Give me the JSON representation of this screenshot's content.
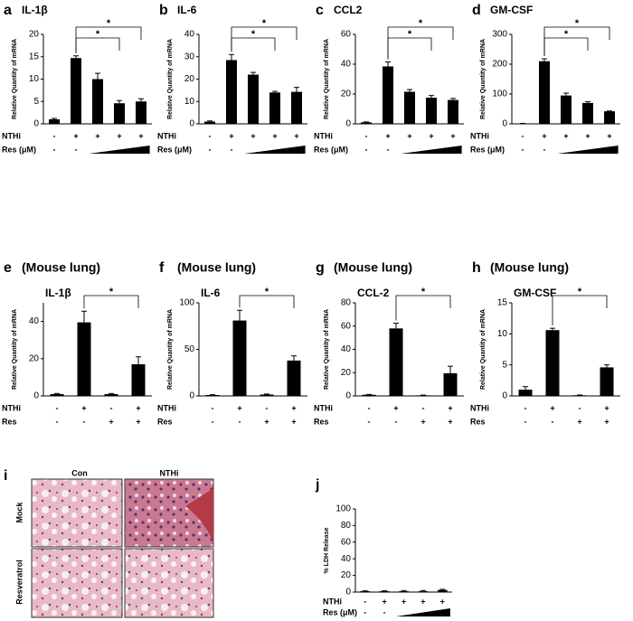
{
  "chart_data": [
    {
      "type": "bar",
      "panel": "a",
      "title": "IL-1β",
      "ylabel": "Relative Quantity of mRNA",
      "color": "#000000",
      "values": [
        1,
        14.7,
        10,
        4.6,
        5
      ],
      "errors": [
        0.2,
        0.5,
        1.3,
        0.6,
        0.6
      ],
      "ylim": [
        0,
        20
      ],
      "yticks": [
        0,
        5,
        10,
        15,
        20
      ],
      "conditions": [
        {
          "name": "NTHi",
          "signs": [
            "-",
            "+",
            "+",
            "+",
            "+"
          ]
        },
        {
          "name": "Res (μM)",
          "signs": [
            "-",
            "-",
            null,
            null,
            null
          ]
        }
      ],
      "significance": [
        {
          "label": "*",
          "between": [
            1,
            4
          ]
        },
        {
          "label": "*",
          "between": [
            1,
            3
          ]
        }
      ]
    },
    {
      "type": "bar",
      "panel": "b",
      "title": "IL-6",
      "ylabel": "Relative Quantity of mRNA",
      "color": "#000000",
      "values": [
        1,
        28.5,
        22,
        14,
        14.3
      ],
      "errors": [
        0.3,
        2.5,
        1,
        0.5,
        2
      ],
      "ylim": [
        0,
        40
      ],
      "yticks": [
        0,
        10,
        20,
        30,
        40
      ],
      "conditions": [
        {
          "name": "NTHi",
          "signs": [
            "-",
            "+",
            "+",
            "+",
            "+"
          ]
        },
        {
          "name": "Res (μM)",
          "signs": [
            "-",
            "-",
            null,
            null,
            null
          ]
        }
      ],
      "significance": [
        {
          "label": "*",
          "between": [
            1,
            4
          ]
        },
        {
          "label": "*",
          "between": [
            1,
            3
          ]
        }
      ]
    },
    {
      "type": "bar",
      "panel": "c",
      "title": "CCL2",
      "ylabel": "Relative Quantity of mRNA",
      "color": "#000000",
      "values": [
        1,
        38.5,
        21.5,
        17.5,
        16
      ],
      "errors": [
        0.3,
        3,
        1.5,
        1.5,
        1
      ],
      "ylim": [
        0,
        60
      ],
      "yticks": [
        0,
        20,
        40,
        60
      ],
      "conditions": [
        {
          "name": "NTHi",
          "signs": [
            "-",
            "+",
            "+",
            "+",
            "+"
          ]
        },
        {
          "name": "Res (μM)",
          "signs": [
            "-",
            "-",
            null,
            null,
            null
          ]
        }
      ],
      "significance": [
        {
          "label": "*",
          "between": [
            1,
            4
          ]
        },
        {
          "label": "*",
          "between": [
            1,
            3
          ]
        }
      ]
    },
    {
      "type": "bar",
      "panel": "d",
      "title": "GM-CSF",
      "ylabel": "Relative Quantity of mRNA",
      "color": "#000000",
      "values": [
        1,
        210,
        95,
        70,
        42
      ],
      "errors": [
        0.5,
        8,
        8,
        4,
        1
      ],
      "ylim": [
        0,
        300
      ],
      "yticks": [
        0,
        100,
        200,
        300
      ],
      "conditions": [
        {
          "name": "NTHi",
          "signs": [
            "-",
            "+",
            "+",
            "+",
            "+"
          ]
        },
        {
          "name": "Res (μM)",
          "signs": [
            "-",
            "-",
            null,
            null,
            null
          ]
        }
      ],
      "significance": [
        {
          "label": "*",
          "between": [
            1,
            4
          ]
        },
        {
          "label": "*",
          "between": [
            1,
            3
          ]
        }
      ]
    },
    {
      "type": "bar",
      "panel": "e",
      "subtitle": "(Mouse lung)",
      "title": "IL-1β",
      "ylabel": "Relative Quantity of mRNA",
      "color": "#000000",
      "values": [
        1,
        39.5,
        1,
        17
      ],
      "errors": [
        0.3,
        6,
        0.3,
        4
      ],
      "ylim": [
        0,
        50
      ],
      "yticks": [
        0,
        20,
        40
      ],
      "conditions": [
        {
          "name": "NTHi",
          "signs": [
            "-",
            "+",
            "-",
            "+"
          ]
        },
        {
          "name": "Res",
          "signs": [
            "-",
            "-",
            "+",
            "+"
          ]
        }
      ],
      "significance": [
        {
          "label": "*",
          "between": [
            1,
            3
          ]
        }
      ]
    },
    {
      "type": "bar",
      "panel": "f",
      "subtitle": "(Mouse lung)",
      "title": "IL-6",
      "ylabel": "Relative Quantity of mRNA",
      "color": "#000000",
      "values": [
        1,
        81,
        1.5,
        38
      ],
      "errors": [
        0.3,
        11,
        0.5,
        5
      ],
      "ylim": [
        0,
        100
      ],
      "yticks": [
        0,
        50,
        100
      ],
      "conditions": [
        {
          "name": "NTHi",
          "signs": [
            "-",
            "+",
            "-",
            "+"
          ]
        },
        {
          "name": "Res",
          "signs": [
            "-",
            "-",
            "+",
            "+"
          ]
        }
      ],
      "significance": [
        {
          "label": "*",
          "between": [
            1,
            3
          ]
        }
      ]
    },
    {
      "type": "bar",
      "panel": "g",
      "subtitle": "(Mouse lung)",
      "title": "CCL-2",
      "ylabel": "Relative Quantity of mRNA",
      "color": "#000000",
      "values": [
        1,
        58,
        0.5,
        19.5
      ],
      "errors": [
        0.3,
        4.5,
        0.2,
        6
      ],
      "ylim": [
        0,
        80
      ],
      "yticks": [
        0,
        20,
        40,
        60,
        80
      ],
      "conditions": [
        {
          "name": "NTHi",
          "signs": [
            "-",
            "+",
            "-",
            "+"
          ]
        },
        {
          "name": "Res",
          "signs": [
            "-",
            "-",
            "+",
            "+"
          ]
        }
      ],
      "significance": [
        {
          "label": "*",
          "between": [
            1,
            3
          ]
        }
      ]
    },
    {
      "type": "bar",
      "panel": "h",
      "subtitle": "(Mouse lung)",
      "title": "GM-CSF",
      "ylabel": "Relative Quantity of mRNA",
      "color": "#000000",
      "values": [
        1,
        10.6,
        0.1,
        4.6
      ],
      "errors": [
        0.5,
        0.3,
        0.05,
        0.4
      ],
      "ylim": [
        0,
        15
      ],
      "yticks": [
        0,
        5,
        10,
        15
      ],
      "conditions": [
        {
          "name": "NTHi",
          "signs": [
            "-",
            "+",
            "-",
            "+"
          ]
        },
        {
          "name": "Res",
          "signs": [
            "-",
            "-",
            "+",
            "+"
          ]
        }
      ],
      "significance": [
        {
          "label": "*",
          "between": [
            1,
            3
          ]
        }
      ]
    },
    {
      "type": "bar",
      "panel": "j",
      "ylabel": "% LDH Release",
      "color": "#000000",
      "values": [
        1,
        1,
        1,
        1,
        2.5
      ],
      "errors": [
        0.5,
        0.5,
        0.8,
        0.8,
        0.8
      ],
      "ylim": [
        0,
        100
      ],
      "yticks": [
        0,
        20,
        40,
        60,
        80,
        100
      ],
      "conditions": [
        {
          "name": "NTHi",
          "signs": [
            "-",
            "+",
            "+",
            "+",
            "+"
          ]
        },
        {
          "name": "Res (μM)",
          "signs": [
            "-",
            "-",
            null,
            null,
            null
          ]
        }
      ],
      "significance": []
    }
  ],
  "image_panel": {
    "panel": "i",
    "columns": [
      "Con",
      "NTHi"
    ],
    "rows": [
      "Mock",
      "Resveratrol"
    ]
  }
}
